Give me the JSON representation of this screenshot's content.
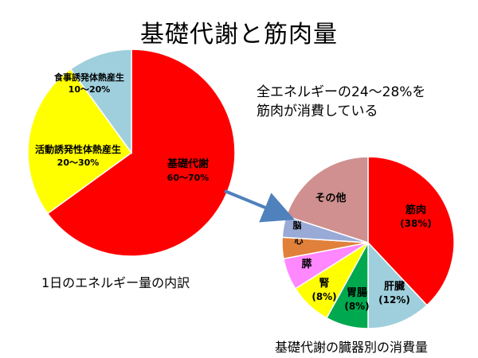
{
  "title": "基礎代謝と筋肉量",
  "note_lines": [
    "全エネルギーの24～28%を",
    "筋肉が消費している"
  ],
  "colors": {
    "red": "#ff0000",
    "yellow": "#ffff00",
    "light_blue": "#9fcfdc",
    "rose": "#d09090",
    "periwinkle": "#9aaad6",
    "orange": "#e0803a",
    "pink": "#ff88ff",
    "green": "#00a84f",
    "arrow": "#4f81bd"
  },
  "chart_data": [
    {
      "type": "pie",
      "caption": "1日のエネルギー量の内訳",
      "slices": [
        {
          "label": "基礎代謝",
          "range": "60～70%",
          "value": 65,
          "color": "#ff0000"
        },
        {
          "label": "活動誘発性体熱産生",
          "range": "20～30%",
          "value": 25,
          "color": "#ffff00"
        },
        {
          "label": "食事誘発体熱産生",
          "range": "10～20%",
          "value": 10,
          "color": "#9fcfdc"
        }
      ]
    },
    {
      "type": "pie",
      "caption": "基礎代謝の臓器別の消費量",
      "slices": [
        {
          "label": "筋肉",
          "pct_label": "(38%)",
          "value": 38,
          "color": "#ff0000"
        },
        {
          "label": "肝臓",
          "pct_label": "(12%)",
          "value": 12,
          "color": "#9fcfdc"
        },
        {
          "label": "胃腸",
          "pct_label": "(8%)",
          "value": 8,
          "color": "#00a84f"
        },
        {
          "label": "腎",
          "pct_label": "(8%)",
          "value": 8,
          "color": "#ffff00"
        },
        {
          "label": "膵",
          "pct_label": "",
          "value": 6,
          "color": "#ff88ff"
        },
        {
          "label": "心",
          "pct_label": "",
          "value": 4,
          "color": "#e0803a"
        },
        {
          "label": "脳",
          "pct_label": "",
          "value": 4,
          "color": "#9aaad6"
        },
        {
          "label": "その他",
          "pct_label": "",
          "value": 20,
          "color": "#d09090"
        }
      ]
    }
  ]
}
